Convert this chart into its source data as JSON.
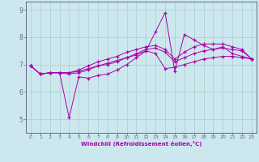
{
  "xlabel": "Windchill (Refroidissement éolien,°C)",
  "bg_color": "#cce8ee",
  "line_color": "#aa00aa",
  "grid_color": "#aacccc",
  "axis_color": "#666688",
  "xlim": [
    -0.5,
    23.5
  ],
  "ylim": [
    4.5,
    9.3
  ],
  "yticks": [
    5,
    6,
    7,
    8,
    9
  ],
  "xticks": [
    0,
    1,
    2,
    3,
    4,
    5,
    6,
    7,
    8,
    9,
    10,
    11,
    12,
    13,
    14,
    15,
    16,
    17,
    18,
    19,
    20,
    21,
    22,
    23
  ],
  "series": [
    [
      6.95,
      6.65,
      6.7,
      6.7,
      5.05,
      6.55,
      6.5,
      6.6,
      6.65,
      6.8,
      7.0,
      7.25,
      7.5,
      8.2,
      8.9,
      6.75,
      8.1,
      7.9,
      7.7,
      7.55,
      7.65,
      7.4,
      7.3,
      7.2
    ],
    [
      6.95,
      6.65,
      6.7,
      6.7,
      6.65,
      6.7,
      6.8,
      6.95,
      7.0,
      7.1,
      7.25,
      7.35,
      7.5,
      7.4,
      6.85,
      6.9,
      7.0,
      7.1,
      7.2,
      7.25,
      7.3,
      7.3,
      7.25,
      7.2
    ],
    [
      6.95,
      6.65,
      6.7,
      6.7,
      6.7,
      6.75,
      6.85,
      6.95,
      7.05,
      7.15,
      7.25,
      7.4,
      7.55,
      7.6,
      7.45,
      7.1,
      7.25,
      7.4,
      7.5,
      7.55,
      7.6,
      7.55,
      7.5,
      7.2
    ],
    [
      6.95,
      6.65,
      6.7,
      6.7,
      6.7,
      6.8,
      6.95,
      7.1,
      7.2,
      7.3,
      7.45,
      7.55,
      7.65,
      7.7,
      7.55,
      7.2,
      7.45,
      7.65,
      7.75,
      7.75,
      7.75,
      7.65,
      7.55,
      7.2
    ]
  ]
}
